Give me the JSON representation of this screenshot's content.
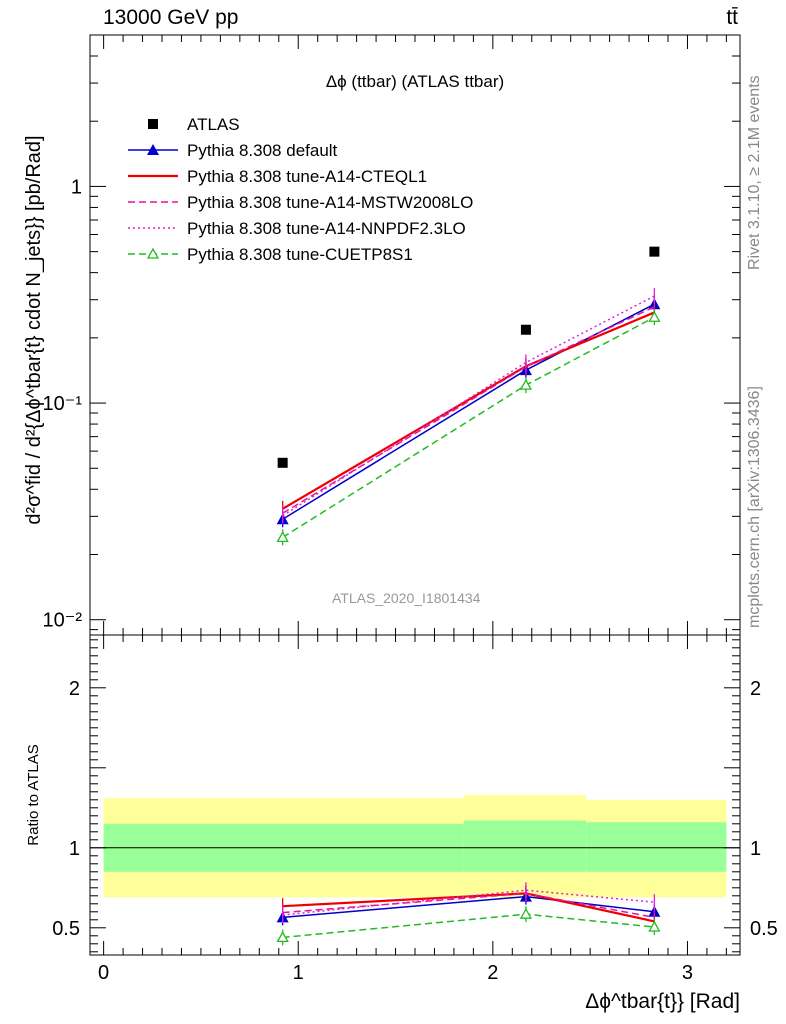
{
  "header": {
    "energy_label": "13000 GeV pp",
    "process_label": "tt̄"
  },
  "side_labels": {
    "rivet": "Rivet 3.1.10, ≥ 2.1M events",
    "mcplots": "mcplots.cern.ch [arXiv:1306.3436]"
  },
  "analysis_id": "ATLAS_2020_I1801434",
  "chart_data": [
    {
      "type": "line",
      "title": "Δϕ (ttbar) (ATLAS ttbar)",
      "ylabel": "d²σ^fid / d²{Δϕ^tbar{t} cdot N_jets}} [pb/Rad]",
      "yscale": "log",
      "ylim": [
        0.0085,
        5
      ],
      "xlim": [
        -0.07,
        3.27
      ],
      "y_ticks": [
        {
          "value": 0.01,
          "label": "10⁻²"
        },
        {
          "value": 0.1,
          "label": "10⁻¹"
        },
        {
          "value": 1,
          "label": "1"
        }
      ],
      "legend_position": "top-left",
      "series": [
        {
          "name": "ATLAS",
          "color": "#000000",
          "marker": "square",
          "x": [
            0.92,
            2.17,
            2.83
          ],
          "y": [
            0.053,
            0.218,
            0.5
          ]
        },
        {
          "name": "Pythia 8.308 default",
          "color": "#0000cc",
          "style": "solid",
          "marker": "triangle-filled",
          "x": [
            0.92,
            2.17,
            2.83
          ],
          "y": [
            0.0291,
            0.142,
            0.286
          ]
        },
        {
          "name": "Pythia 8.308 tune-A14-CTEQL1",
          "color": "#ee0000",
          "style": "solid",
          "x": [
            0.92,
            2.17,
            2.83
          ],
          "y": [
            0.0325,
            0.148,
            0.262
          ]
        },
        {
          "name": "Pythia 8.308 tune-A14-MSTW2008LO",
          "color": "#ee1199",
          "style": "dashed",
          "x": [
            0.92,
            2.17,
            2.83
          ],
          "y": [
            0.031,
            0.147,
            0.278
          ]
        },
        {
          "name": "Pythia 8.308 tune-A14-NNPDF2.3LO",
          "color": "#dd22dd",
          "style": "dotted",
          "x": [
            0.92,
            2.17,
            2.83
          ],
          "y": [
            0.0302,
            0.154,
            0.312
          ]
        },
        {
          "name": "Pythia 8.308 tune-CUETP8S1",
          "color": "#22bb22",
          "style": "dashed",
          "marker": "triangle-open",
          "x": [
            0.92,
            2.17,
            2.83
          ],
          "y": [
            0.024,
            0.121,
            0.249
          ]
        }
      ]
    },
    {
      "type": "line",
      "ylabel": "Ratio to ATLAS",
      "xlabel": "Δϕ^tbar{t}} [Rad]",
      "ylim": [
        0.33,
        2.33
      ],
      "xlim": [
        -0.07,
        3.27
      ],
      "x_ticks": [
        0,
        1,
        2,
        3
      ],
      "y_ticks": [
        0.5,
        1,
        2
      ],
      "reference_line": 1,
      "uncertainty_bands": {
        "bins": [
          [
            0.0,
            1.85
          ],
          [
            1.85,
            2.48
          ],
          [
            2.48,
            3.2
          ]
        ],
        "total": [
          [
            0.69,
            1.31
          ],
          [
            0.69,
            1.33
          ],
          [
            0.69,
            1.3
          ]
        ],
        "stat": [
          [
            0.85,
            1.15
          ],
          [
            0.85,
            1.17
          ],
          [
            0.85,
            1.16
          ]
        ],
        "total_color": "#ffff99",
        "stat_color": "#99ff99"
      },
      "series": [
        {
          "name": "Pythia 8.308 default",
          "color": "#0000cc",
          "style": "solid",
          "marker": "triangle-filled",
          "x": [
            0.92,
            2.17,
            2.83
          ],
          "y": [
            0.565,
            0.695,
            0.6
          ]
        },
        {
          "name": "Pythia 8.308 tune-A14-CTEQL1",
          "color": "#ee0000",
          "style": "solid",
          "x": [
            0.92,
            2.17,
            2.83
          ],
          "y": [
            0.635,
            0.715,
            0.54
          ]
        },
        {
          "name": "Pythia 8.308 tune-A14-MSTW2008LO",
          "color": "#ee1199",
          "style": "dashed",
          "x": [
            0.92,
            2.17,
            2.83
          ],
          "y": [
            0.595,
            0.715,
            0.565
          ]
        },
        {
          "name": "Pythia 8.308 tune-A14-NNPDF2.3LO",
          "color": "#dd22dd",
          "style": "dotted",
          "x": [
            0.92,
            2.17,
            2.83
          ],
          "y": [
            0.58,
            0.735,
            0.66
          ]
        },
        {
          "name": "Pythia 8.308 tune-CUETP8S1",
          "color": "#22bb22",
          "style": "dashed",
          "marker": "triangle-open",
          "x": [
            0.92,
            2.17,
            2.83
          ],
          "y": [
            0.44,
            0.585,
            0.505
          ]
        }
      ]
    }
  ]
}
